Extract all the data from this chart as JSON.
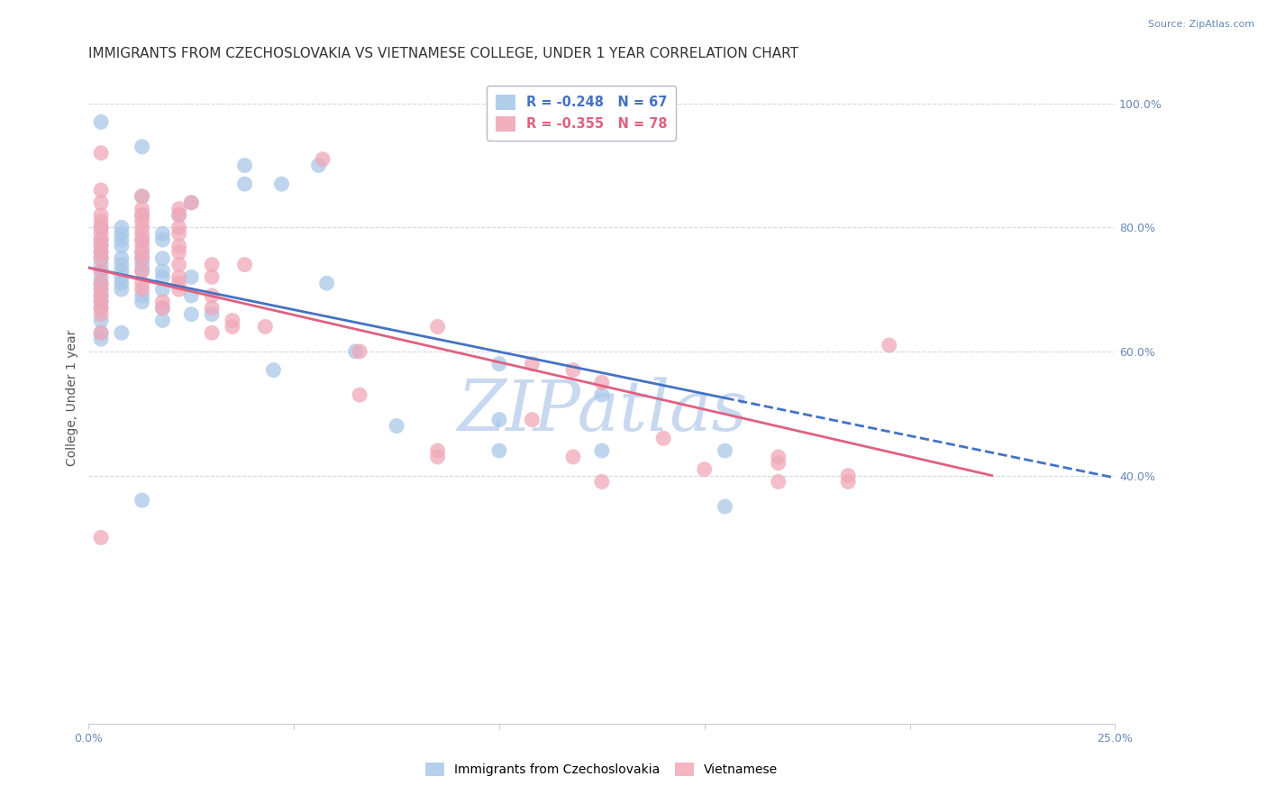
{
  "title": "IMMIGRANTS FROM CZECHOSLOVAKIA VS VIETNAMESE COLLEGE, UNDER 1 YEAR CORRELATION CHART",
  "source": "Source: ZipAtlas.com",
  "ylabel": "College, Under 1 year",
  "x_min": 0.0,
  "x_max": 0.25,
  "y_min": 0.0,
  "y_max": 1.05,
  "x_tick_positions": [
    0.0,
    0.05,
    0.1,
    0.15,
    0.2,
    0.25
  ],
  "x_tick_labels": [
    "0.0%",
    "",
    "",
    "",
    "",
    "25.0%"
  ],
  "y_ticks_right": [
    0.4,
    0.6,
    0.8,
    1.0
  ],
  "y_tick_labels_right": [
    "40.0%",
    "60.0%",
    "80.0%",
    "100.0%"
  ],
  "blue_R": -0.248,
  "blue_N": 67,
  "pink_R": -0.355,
  "pink_N": 78,
  "blue_color": "#a8c8e8",
  "pink_color": "#f0a8b8",
  "blue_line_color": "#4472c4",
  "pink_line_color": "#e06080",
  "blue_scatter": [
    [
      0.003,
      0.97
    ],
    [
      0.013,
      0.93
    ],
    [
      0.038,
      0.9
    ],
    [
      0.056,
      0.9
    ],
    [
      0.038,
      0.87
    ],
    [
      0.047,
      0.87
    ],
    [
      0.013,
      0.85
    ],
    [
      0.025,
      0.84
    ],
    [
      0.013,
      0.82
    ],
    [
      0.022,
      0.82
    ],
    [
      0.003,
      0.8
    ],
    [
      0.008,
      0.8
    ],
    [
      0.008,
      0.79
    ],
    [
      0.018,
      0.79
    ],
    [
      0.003,
      0.78
    ],
    [
      0.008,
      0.78
    ],
    [
      0.013,
      0.78
    ],
    [
      0.018,
      0.78
    ],
    [
      0.003,
      0.77
    ],
    [
      0.008,
      0.77
    ],
    [
      0.013,
      0.76
    ],
    [
      0.003,
      0.76
    ],
    [
      0.003,
      0.75
    ],
    [
      0.008,
      0.75
    ],
    [
      0.013,
      0.75
    ],
    [
      0.018,
      0.75
    ],
    [
      0.003,
      0.74
    ],
    [
      0.008,
      0.74
    ],
    [
      0.013,
      0.74
    ],
    [
      0.018,
      0.73
    ],
    [
      0.003,
      0.73
    ],
    [
      0.008,
      0.73
    ],
    [
      0.013,
      0.73
    ],
    [
      0.003,
      0.72
    ],
    [
      0.008,
      0.72
    ],
    [
      0.018,
      0.72
    ],
    [
      0.025,
      0.72
    ],
    [
      0.003,
      0.71
    ],
    [
      0.008,
      0.71
    ],
    [
      0.003,
      0.7
    ],
    [
      0.008,
      0.7
    ],
    [
      0.018,
      0.7
    ],
    [
      0.003,
      0.69
    ],
    [
      0.013,
      0.69
    ],
    [
      0.025,
      0.69
    ],
    [
      0.003,
      0.68
    ],
    [
      0.013,
      0.68
    ],
    [
      0.003,
      0.67
    ],
    [
      0.018,
      0.67
    ],
    [
      0.025,
      0.66
    ],
    [
      0.03,
      0.66
    ],
    [
      0.003,
      0.65
    ],
    [
      0.018,
      0.65
    ],
    [
      0.058,
      0.71
    ],
    [
      0.003,
      0.63
    ],
    [
      0.008,
      0.63
    ],
    [
      0.003,
      0.62
    ],
    [
      0.065,
      0.6
    ],
    [
      0.1,
      0.58
    ],
    [
      0.045,
      0.57
    ],
    [
      0.125,
      0.53
    ],
    [
      0.1,
      0.49
    ],
    [
      0.075,
      0.48
    ],
    [
      0.1,
      0.44
    ],
    [
      0.125,
      0.44
    ],
    [
      0.155,
      0.44
    ],
    [
      0.155,
      0.35
    ],
    [
      0.013,
      0.36
    ]
  ],
  "pink_scatter": [
    [
      0.003,
      0.92
    ],
    [
      0.057,
      0.91
    ],
    [
      0.003,
      0.86
    ],
    [
      0.013,
      0.85
    ],
    [
      0.003,
      0.84
    ],
    [
      0.013,
      0.83
    ],
    [
      0.022,
      0.83
    ],
    [
      0.003,
      0.82
    ],
    [
      0.013,
      0.82
    ],
    [
      0.022,
      0.82
    ],
    [
      0.003,
      0.81
    ],
    [
      0.013,
      0.81
    ],
    [
      0.003,
      0.8
    ],
    [
      0.013,
      0.8
    ],
    [
      0.022,
      0.8
    ],
    [
      0.003,
      0.79
    ],
    [
      0.013,
      0.79
    ],
    [
      0.022,
      0.79
    ],
    [
      0.003,
      0.78
    ],
    [
      0.013,
      0.78
    ],
    [
      0.003,
      0.77
    ],
    [
      0.013,
      0.77
    ],
    [
      0.022,
      0.77
    ],
    [
      0.003,
      0.76
    ],
    [
      0.013,
      0.76
    ],
    [
      0.022,
      0.76
    ],
    [
      0.003,
      0.75
    ],
    [
      0.013,
      0.75
    ],
    [
      0.022,
      0.74
    ],
    [
      0.03,
      0.74
    ],
    [
      0.038,
      0.74
    ],
    [
      0.003,
      0.73
    ],
    [
      0.013,
      0.73
    ],
    [
      0.022,
      0.72
    ],
    [
      0.03,
      0.72
    ],
    [
      0.003,
      0.71
    ],
    [
      0.013,
      0.71
    ],
    [
      0.022,
      0.71
    ],
    [
      0.003,
      0.7
    ],
    [
      0.013,
      0.7
    ],
    [
      0.022,
      0.7
    ],
    [
      0.003,
      0.69
    ],
    [
      0.03,
      0.69
    ],
    [
      0.003,
      0.68
    ],
    [
      0.018,
      0.68
    ],
    [
      0.003,
      0.67
    ],
    [
      0.018,
      0.67
    ],
    [
      0.03,
      0.67
    ],
    [
      0.003,
      0.66
    ],
    [
      0.035,
      0.65
    ],
    [
      0.035,
      0.64
    ],
    [
      0.043,
      0.64
    ],
    [
      0.003,
      0.63
    ],
    [
      0.03,
      0.63
    ],
    [
      0.085,
      0.64
    ],
    [
      0.066,
      0.6
    ],
    [
      0.025,
      0.84
    ],
    [
      0.108,
      0.58
    ],
    [
      0.118,
      0.57
    ],
    [
      0.125,
      0.55
    ],
    [
      0.066,
      0.53
    ],
    [
      0.108,
      0.49
    ],
    [
      0.14,
      0.46
    ],
    [
      0.118,
      0.43
    ],
    [
      0.15,
      0.41
    ],
    [
      0.003,
      0.3
    ],
    [
      0.168,
      0.43
    ],
    [
      0.168,
      0.42
    ],
    [
      0.185,
      0.4
    ],
    [
      0.085,
      0.44
    ],
    [
      0.085,
      0.43
    ],
    [
      0.125,
      0.39
    ],
    [
      0.168,
      0.39
    ],
    [
      0.185,
      0.39
    ],
    [
      0.195,
      0.61
    ]
  ],
  "blue_line_x0": 0.0,
  "blue_line_y0": 0.735,
  "blue_line_x1": 0.155,
  "blue_line_y1": 0.525,
  "blue_line_xdash0": 0.155,
  "blue_line_xdash1": 0.25,
  "pink_line_x0": 0.0,
  "pink_line_y0": 0.735,
  "pink_line_x1": 0.22,
  "pink_line_y1": 0.4,
  "watermark": "ZIPatlas",
  "watermark_color": "#c8d8f0",
  "legend_box_color": "#ffffff",
  "legend_border_color": "#b8b8c8",
  "grid_color": "#d0d8e8",
  "axis_label_color": "#6688bb",
  "title_color": "#333333",
  "title_fontsize": 11,
  "ylabel_fontsize": 10,
  "tick_fontsize": 9,
  "source_fontsize": 8,
  "legend_text_color_blue": "#4472c4",
  "legend_text_color_pink": "#e06080"
}
